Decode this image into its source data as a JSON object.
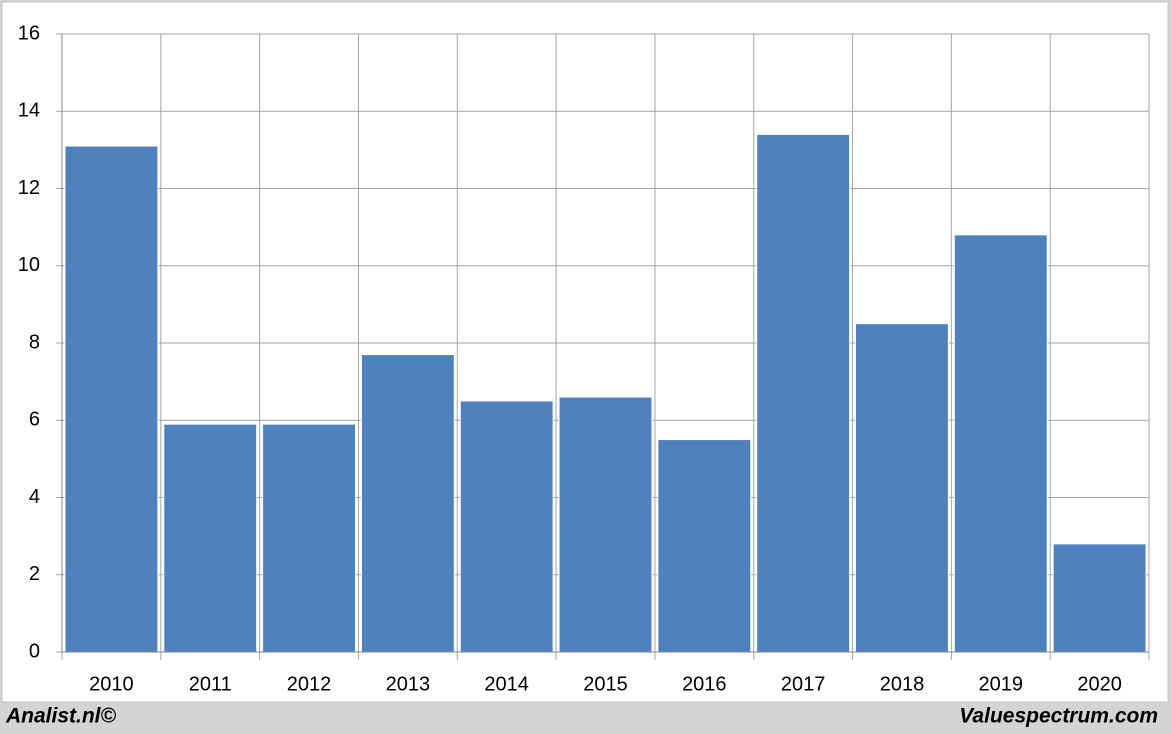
{
  "chart_data": {
    "type": "bar",
    "categories": [
      "2010",
      "2011",
      "2012",
      "2013",
      "2014",
      "2015",
      "2016",
      "2017",
      "2018",
      "2019",
      "2020"
    ],
    "values": [
      13.1,
      5.9,
      5.9,
      7.7,
      6.5,
      6.6,
      5.5,
      13.4,
      8.5,
      10.8,
      2.8
    ],
    "color": "#4f81bd",
    "ylim": [
      0,
      16
    ],
    "yticks": [
      0,
      2,
      4,
      6,
      8,
      10,
      12,
      14,
      16
    ],
    "grid": true,
    "footer_left": "Analist.nl©",
    "footer_right": "Valuespectrum.com"
  }
}
